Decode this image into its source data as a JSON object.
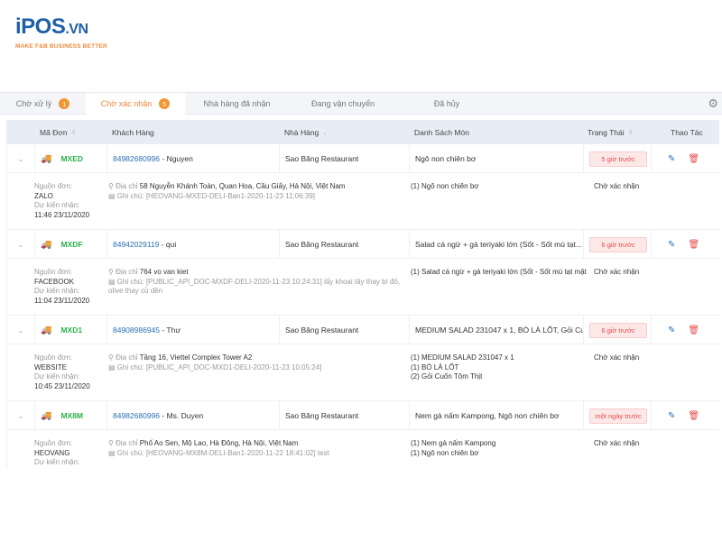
{
  "logo": {
    "main": "iPOS",
    "suffix": ".VN",
    "tagline": "MAKE F&B BUSINESS BETTER"
  },
  "tabs": [
    {
      "label": "Chờ xử lý",
      "count": "1"
    },
    {
      "label": "Chờ xác nhận",
      "count": "5",
      "active": true
    },
    {
      "label": "Nhà hàng đã nhận"
    },
    {
      "label": "Đang vận chuyển"
    },
    {
      "label": "Đã hủy"
    }
  ],
  "settings_icon": "gear-icon",
  "columns": {
    "code": "Mã Đơn",
    "customer": "Khách Hàng",
    "restaurant": "Nhà Hàng",
    "items": "Danh Sách Món",
    "status": "Trạng Thái",
    "actions": "Thao Tác"
  },
  "labels": {
    "source": "Nguồn đơn:",
    "expected": "Dự kiến nhận:",
    "address": "Địa chỉ",
    "note": "Ghi chú:"
  },
  "colors": {
    "accent": "#f0883a",
    "link": "#2a6fb5",
    "code": "#2bb24c",
    "danger": "#e74c4c"
  },
  "orders": [
    {
      "code": "MXED",
      "phone": "84982680996",
      "name": " - Nguyen",
      "restaurant": "Sao Băng Restaurant",
      "items_summary": "Ngô non chiên bơ",
      "status_time": "5 giờ trước",
      "source": "ZALO",
      "expected": "11:46 23/11/2020",
      "address": "58 Nguyễn Khánh Toàn, Quan Hoa, Cầu Giấy, Hà Nội, Việt Nam",
      "note": "[HEOVANG-MXED-DELI-Ban1-2020-11-23 11:06:39]",
      "items": [
        "(1) Ngô non chiên bơ"
      ],
      "state": "Chờ xác nhận"
    },
    {
      "code": "MXDF",
      "phone": "84942029119",
      "name": " - qui",
      "restaurant": "Sao Băng Restaurant",
      "items_summary": "Salad cá ngừ + gà teriyaki lớn (Sốt - Sốt mù tạt...",
      "status_time": "6 giờ trước",
      "source": "FACEBOOK",
      "expected": "11:04 23/11/2020",
      "address": "764 vo van kiet",
      "note": "[PUBLIC_API_DOC-MXDF-DELI-2020-11-23 10:24:31] lấy khoai tây thay bí đỏ, olive thay củ dền",
      "items": [
        "(1) Salad cá ngừ + gà teriyaki lớn (Sốt - Sốt mù tạt mật"
      ],
      "state": "Chờ xác nhận"
    },
    {
      "code": "MXD1",
      "phone": "84908986945",
      "name": " - Thư",
      "restaurant": "Sao Băng Restaurant",
      "items_summary": "MEDIUM SALAD 231047 x 1, BÒ LÁ LỐT, Gỏi Cu...",
      "status_time": "6 giờ trước",
      "source": "WEBSITE",
      "expected": "10:45 23/11/2020",
      "address": "Tầng 16, Viettel Complex Tower A2",
      "note": "[PUBLIC_API_DOC-MXD1-DELI-2020-11-23 10:05:24]",
      "items": [
        "(1) MEDIUM SALAD 231047 x 1",
        "(1) BÒ LÁ LỐT",
        "(2) Gỏi Cuốn Tôm Thịt"
      ],
      "state": "Chờ xác nhận"
    },
    {
      "code": "MX8M",
      "phone": "84982680996",
      "name": " - Ms. Duyen",
      "restaurant": "Sao Băng Restaurant",
      "items_summary": "Nem gà nấm Kampong, Ngô non chiên bơ",
      "status_time": "một ngày trước",
      "source": "HEOVANG",
      "expected": "",
      "address": "Phố Ao Sen, Mộ Lao, Hà Đông, Hà Nội, Việt Nam",
      "note": "[HEOVANG-MX8M-DELI-Ban1-2020-11-22 18:41:02] test",
      "items": [
        "(1) Nem gà nấm Kampong",
        "(1) Ngô non chiên bơ"
      ],
      "state": "Chờ xác nhận"
    }
  ]
}
